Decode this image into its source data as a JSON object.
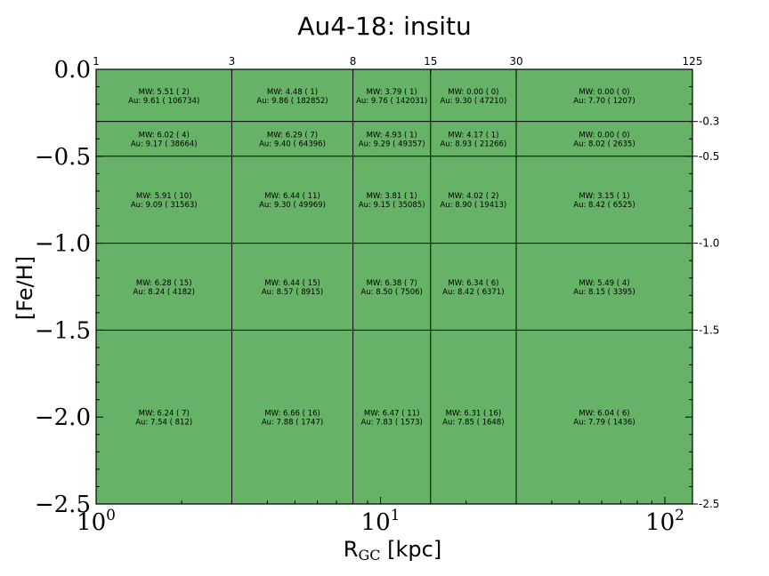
{
  "chart_data": {
    "type": "heatmap",
    "title": "Au4-18: insitu",
    "xlabel_main": "R",
    "xlabel_sub": "GC",
    "xlabel_unit": " [kpc]",
    "ylabel": "[Fe/H]",
    "x_scale": "log",
    "xlim": [
      1,
      125
    ],
    "ylim": [
      -2.5,
      0.0
    ],
    "cell_color": "#66b266",
    "x_bin_edges": [
      1,
      3,
      8,
      15,
      30,
      125
    ],
    "y_bin_edges": [
      0.0,
      -0.3,
      -0.5,
      -1.0,
      -1.5,
      -2.5
    ],
    "top_tick_labels": [
      "1",
      "3",
      "8",
      "15",
      "30",
      "125"
    ],
    "right_tick_labels": [
      "-0.3",
      "-0.5",
      "-1.0",
      "-1.5",
      "-2.5"
    ],
    "left_ticks": [
      {
        "value": 0.0,
        "label": "0.0"
      },
      {
        "value": -0.5,
        "label": "−0.5"
      },
      {
        "value": -1.0,
        "label": "−1.0"
      },
      {
        "value": -1.5,
        "label": "−1.5"
      },
      {
        "value": -2.0,
        "label": "−2.0"
      },
      {
        "value": -2.5,
        "label": "−2.5"
      }
    ],
    "bottom_ticks": [
      {
        "value": 1,
        "base": "10",
        "exp": "0"
      },
      {
        "value": 10,
        "base": "10",
        "exp": "1"
      },
      {
        "value": 100,
        "base": "10",
        "exp": "2"
      }
    ],
    "cells": [
      [
        {
          "mw": "MW: 5.51 ( 2)",
          "au": "Au: 9.61 ( 106734)"
        },
        {
          "mw": "MW: 4.48 ( 1)",
          "au": "Au: 9.86 ( 182852)"
        },
        {
          "mw": "MW: 3.79 ( 1)",
          "au": "Au: 9.76 ( 142031)"
        },
        {
          "mw": "MW: 0.00 ( 0)",
          "au": "Au: 9.30 ( 47210)"
        },
        {
          "mw": "MW: 0.00 ( 0)",
          "au": "Au: 7.70 ( 1207)"
        }
      ],
      [
        {
          "mw": "MW: 6.02 ( 4)",
          "au": "Au: 9.17 ( 38664)"
        },
        {
          "mw": "MW: 6.29 ( 7)",
          "au": "Au: 9.40 ( 64396)"
        },
        {
          "mw": "MW: 4.93 ( 1)",
          "au": "Au: 9.29 ( 49357)"
        },
        {
          "mw": "MW: 4.17 ( 1)",
          "au": "Au: 8.93 ( 21266)"
        },
        {
          "mw": "MW: 0.00 ( 0)",
          "au": "Au: 8.02 ( 2635)"
        }
      ],
      [
        {
          "mw": "MW: 5.91 ( 10)",
          "au": "Au: 9.09 ( 31563)"
        },
        {
          "mw": "MW: 6.44 ( 11)",
          "au": "Au: 9.30 ( 49969)"
        },
        {
          "mw": "MW: 3.81 ( 1)",
          "au": "Au: 9.15 ( 35085)"
        },
        {
          "mw": "MW: 4.02 ( 2)",
          "au": "Au: 8.90 ( 19413)"
        },
        {
          "mw": "MW: 3.15 ( 1)",
          "au": "Au: 8.42 ( 6525)"
        }
      ],
      [
        {
          "mw": "MW: 6.28 ( 15)",
          "au": "Au: 8.24 ( 4182)"
        },
        {
          "mw": "MW: 6.44 ( 15)",
          "au": "Au: 8.57 ( 8915)"
        },
        {
          "mw": "MW: 6.38 ( 7)",
          "au": "Au: 8.50 ( 7506)"
        },
        {
          "mw": "MW: 6.34 ( 6)",
          "au": "Au: 8.42 ( 6371)"
        },
        {
          "mw": "MW: 5.49 ( 4)",
          "au": "Au: 8.15 ( 3395)"
        }
      ],
      [
        {
          "mw": "MW: 6.24 ( 7)",
          "au": "Au: 7.54 ( 812)"
        },
        {
          "mw": "MW: 6.66 ( 16)",
          "au": "Au: 7.88 ( 1747)"
        },
        {
          "mw": "MW: 6.47 ( 11)",
          "au": "Au: 7.83 ( 1573)"
        },
        {
          "mw": "MW: 6.31 ( 16)",
          "au": "Au: 7.85 ( 1648)"
        },
        {
          "mw": "MW: 6.04 ( 6)",
          "au": "Au: 7.79 ( 1436)"
        }
      ]
    ]
  }
}
